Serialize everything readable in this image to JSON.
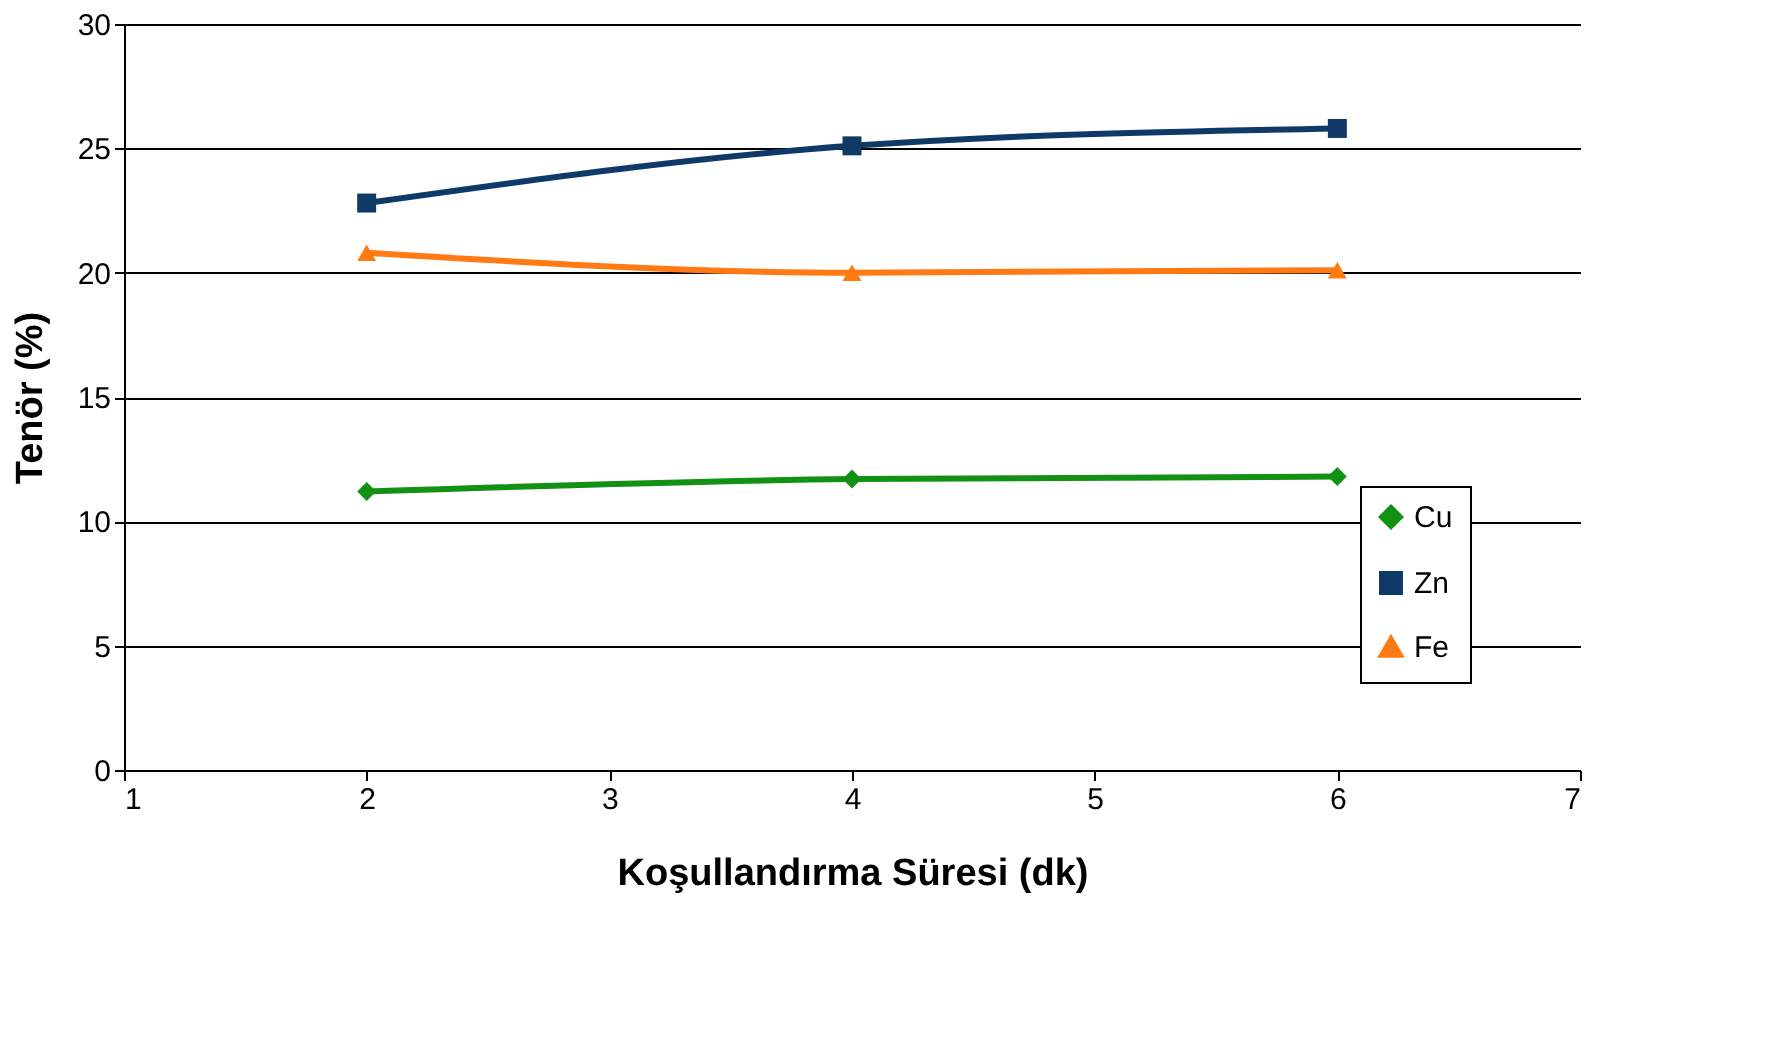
{
  "chart_data": {
    "type": "line",
    "xlabel": "Koşullandırma Süresi (dk)",
    "ylabel": "Tenör (%)",
    "x": [
      2,
      4,
      6
    ],
    "series": [
      {
        "name": "Cu",
        "color": "#139113",
        "marker": "diamond",
        "values": [
          11.2,
          11.7,
          11.8
        ]
      },
      {
        "name": "Zn",
        "color": "#0f3a68",
        "marker": "square",
        "values": [
          22.8,
          25.1,
          25.8
        ]
      },
      {
        "name": "Fe",
        "color": "#ff7a12",
        "marker": "triangle",
        "values": [
          20.8,
          20.0,
          20.1
        ]
      }
    ],
    "xlim": [
      1,
      7
    ],
    "xticks": [
      1,
      2,
      3,
      4,
      5,
      6,
      7
    ],
    "ylim": [
      0,
      30
    ],
    "yticks": [
      0,
      5,
      10,
      15,
      20,
      25,
      30
    ],
    "grid": "y",
    "legend": "right",
    "line_style": "solid"
  }
}
